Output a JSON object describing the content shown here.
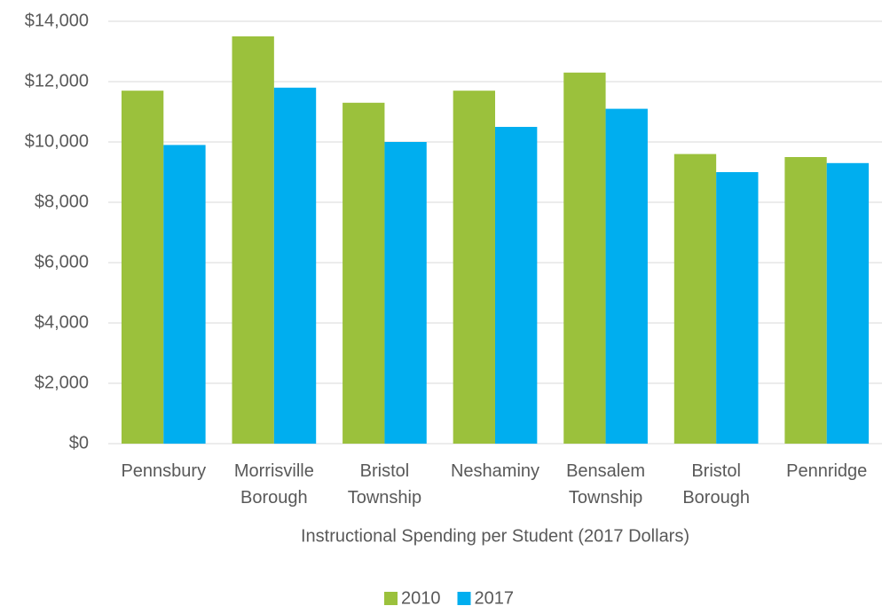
{
  "chart_data": {
    "type": "bar",
    "x_label": "Instructional Spending per Student (2017 Dollars)",
    "categories": [
      "Pennsbury",
      "Morrisville Borough",
      "Bristol Township",
      "Neshaminy",
      "Bensalem Township",
      "Bristol Borough",
      "Pennridge"
    ],
    "series": [
      {
        "name": "2010",
        "color": "#9bc13c",
        "values": [
          11700,
          13500,
          11300,
          11700,
          12300,
          9600,
          9500
        ]
      },
      {
        "name": "2017",
        "color": "#00aeef",
        "values": [
          9900,
          11800,
          10000,
          10500,
          11100,
          9000,
          9300
        ]
      }
    ],
    "ylim": [
      0,
      14000
    ],
    "yticks": [
      {
        "value": 0,
        "label": "$0"
      },
      {
        "value": 2000,
        "label": "$2,000"
      },
      {
        "value": 4000,
        "label": "$4,000"
      },
      {
        "value": 6000,
        "label": "$6,000"
      },
      {
        "value": 8000,
        "label": "$8,000"
      },
      {
        "value": 10000,
        "label": "$10,000"
      },
      {
        "value": 12000,
        "label": "$12,000"
      },
      {
        "value": 14000,
        "label": "$14,000"
      }
    ],
    "grid": true,
    "legend": "bottom"
  }
}
